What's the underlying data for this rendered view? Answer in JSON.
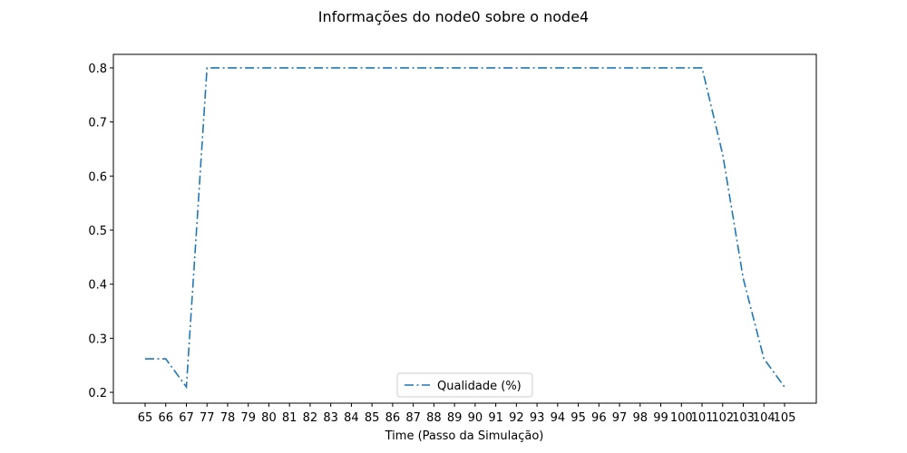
{
  "chart_data": {
    "type": "line",
    "title": "Informações do node0 sobre o node4",
    "xlabel": "Time (Passo da Simulação)",
    "ylabel": "",
    "categories": [
      "65",
      "66",
      "67",
      "77",
      "78",
      "79",
      "80",
      "81",
      "82",
      "83",
      "84",
      "85",
      "86",
      "87",
      "88",
      "89",
      "90",
      "91",
      "92",
      "93",
      "94",
      "95",
      "96",
      "97",
      "98",
      "99",
      "100",
      "101",
      "102",
      "103",
      "104",
      "105"
    ],
    "series": [
      {
        "name": "Qualidade (%)",
        "color": "#1f77b4",
        "line_style": "dashdot",
        "values": [
          0.262,
          0.262,
          0.21,
          0.8,
          0.8,
          0.8,
          0.8,
          0.8,
          0.8,
          0.8,
          0.8,
          0.8,
          0.8,
          0.8,
          0.8,
          0.8,
          0.8,
          0.8,
          0.8,
          0.8,
          0.8,
          0.8,
          0.8,
          0.8,
          0.8,
          0.8,
          0.8,
          0.8,
          0.64,
          0.41,
          0.262,
          0.21
        ]
      }
    ],
    "ylim": [
      0.18,
      0.825
    ],
    "yticks": [
      "0.2",
      "0.3",
      "0.4",
      "0.5",
      "0.6",
      "0.7",
      "0.8"
    ],
    "grid": false,
    "legend_position": "lower center"
  }
}
